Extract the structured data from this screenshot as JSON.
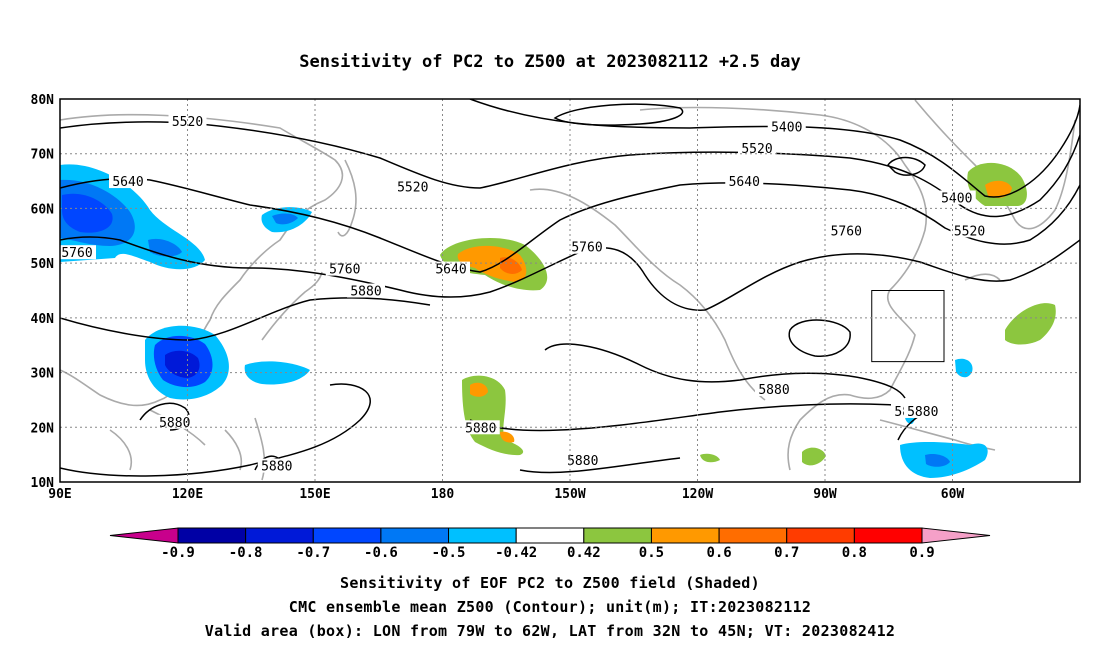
{
  "title": "Sensitivity of PC2 to Z500 at 2023082112 +2.5 day",
  "map": {
    "lat_labels": [
      "80N",
      "70N",
      "60N",
      "50N",
      "40N",
      "30N",
      "20N",
      "10N"
    ],
    "lon_labels": [
      "90E",
      "120E",
      "150E",
      "180",
      "150W",
      "120W",
      "90W",
      "60W"
    ],
    "contour_labels": [
      {
        "text": "5520",
        "lon": 120,
        "lat": 76
      },
      {
        "text": "5400",
        "lon": 261,
        "lat": 75
      },
      {
        "text": "5520",
        "lon": 254,
        "lat": 71
      },
      {
        "text": "5520",
        "lon": 173,
        "lat": 64
      },
      {
        "text": "5640",
        "lon": 106,
        "lat": 65
      },
      {
        "text": "5640",
        "lon": 251,
        "lat": 65
      },
      {
        "text": "5400",
        "lon": 301,
        "lat": 62
      },
      {
        "text": "5520",
        "lon": 304,
        "lat": 56
      },
      {
        "text": "5760",
        "lon": 94,
        "lat": 52
      },
      {
        "text": "5760",
        "lon": 214,
        "lat": 53
      },
      {
        "text": "5760",
        "lon": 275,
        "lat": 56
      },
      {
        "text": "5640",
        "lon": 182,
        "lat": 49
      },
      {
        "text": "5760",
        "lon": 157,
        "lat": 49
      },
      {
        "text": "5880",
        "lon": 162,
        "lat": 45
      },
      {
        "text": "5880",
        "lon": 258,
        "lat": 27
      },
      {
        "text": "5880",
        "lon": 290,
        "lat": 23
      },
      {
        "text": "5880",
        "lon": 293,
        "lat": 23
      },
      {
        "text": "5880",
        "lon": 117,
        "lat": 21
      },
      {
        "text": "5880",
        "lon": 189,
        "lat": 20
      },
      {
        "text": "5880",
        "lon": 213,
        "lat": 14
      },
      {
        "text": "5880",
        "lon": 141,
        "lat": 13
      }
    ],
    "box": {
      "lon_min": 281,
      "lon_max": 298,
      "lat_min": 32,
      "lat_max": 45
    }
  },
  "colorbar": {
    "labels": [
      "-0.9",
      "-0.8",
      "-0.7",
      "-0.6",
      "-0.5",
      "-0.42",
      "0.42",
      "0.5",
      "0.6",
      "0.7",
      "0.8",
      "0.9"
    ],
    "colors": [
      "#0000a5",
      "#0019d8",
      "#0046ff",
      "#0078f5",
      "#00c0ff",
      "#ffffff",
      "#8cc63f",
      "#ff9900",
      "#ff6d00",
      "#ff3c00",
      "#ff0000"
    ],
    "under_color": "#c8008c",
    "over_color": "#f5a0c8"
  },
  "caption": {
    "line1": "Sensitivity of EOF PC2 to Z500 field (Shaded)",
    "line2": "CMC ensemble mean Z500 (Contour); unit(m); IT:2023082112",
    "line3": "Valid area (box): LON from 79W to 62W, LAT from 32N to 45N; VT: 2023082412"
  }
}
